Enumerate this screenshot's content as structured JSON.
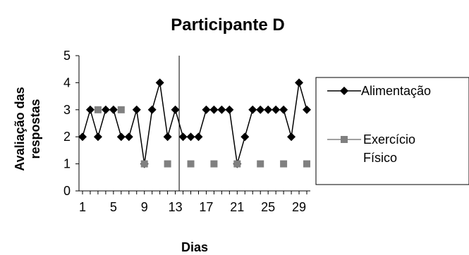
{
  "chart_data": {
    "type": "line",
    "title": "Participante D",
    "xlabel": "Dias",
    "ylabel_lines": [
      "Avaliação das",
      "respostas"
    ],
    "x_range": [
      1,
      30
    ],
    "ylim": [
      0,
      5
    ],
    "y_ticks": [
      "0",
      "1",
      "2",
      "3",
      "4",
      "5"
    ],
    "x_tick_labels": [
      {
        "x": 1,
        "label": "1"
      },
      {
        "x": 5,
        "label": "5"
      },
      {
        "x": 9,
        "label": "9"
      },
      {
        "x": 13,
        "label": "13"
      },
      {
        "x": 17,
        "label": "17"
      },
      {
        "x": 21,
        "label": "21"
      },
      {
        "x": 25,
        "label": "25"
      },
      {
        "x": 29,
        "label": "29"
      }
    ],
    "phase_line_x": 13.5,
    "legend_placement": "right",
    "series": [
      {
        "name": "Alimentação",
        "marker": "diamond",
        "line": true,
        "color": "#000000",
        "x": [
          1,
          2,
          3,
          4,
          5,
          6,
          7,
          8,
          9,
          10,
          11,
          12,
          13,
          14,
          15,
          16,
          17,
          18,
          19,
          20,
          21,
          22,
          23,
          24,
          25,
          26,
          27,
          28,
          29,
          30
        ],
        "y": [
          2,
          3,
          2,
          3,
          3,
          2,
          2,
          3,
          1,
          3,
          4,
          2,
          3,
          2,
          2,
          2,
          3,
          3,
          3,
          3,
          1,
          2,
          3,
          3,
          3,
          3,
          3,
          2,
          4,
          3
        ]
      },
      {
        "name_lines": [
          "Exercício",
          "Físico"
        ],
        "marker": "square",
        "line": false,
        "color": "#808080",
        "x": [
          3,
          6,
          9,
          12,
          15,
          18,
          21,
          24,
          27,
          30
        ],
        "y": [
          3,
          3,
          1,
          1,
          1,
          1,
          1,
          1,
          1,
          1
        ]
      }
    ]
  }
}
